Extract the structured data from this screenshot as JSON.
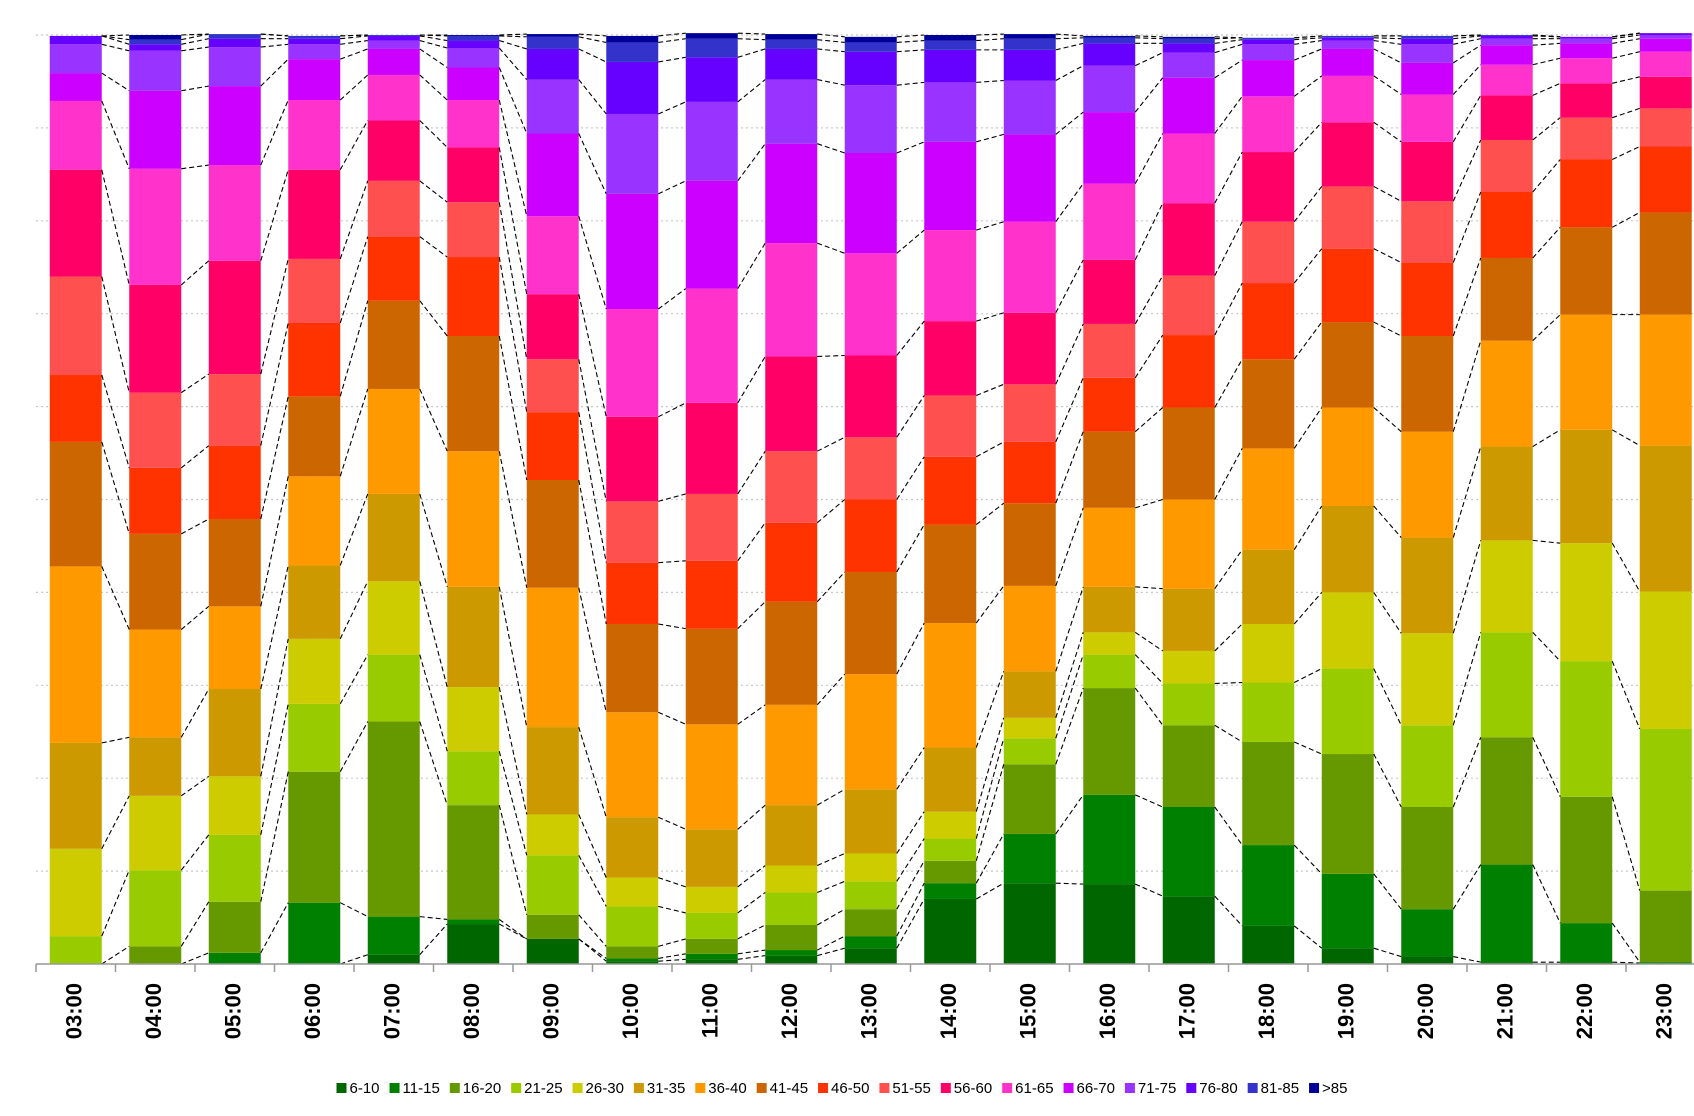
{
  "chart_data": {
    "type": "stacked_bar_100",
    "categories": [
      "03:00",
      "04:00",
      "05:00",
      "06:00",
      "07:00",
      "08:00",
      "09:00",
      "10:00",
      "11:00",
      "12:00",
      "13:00",
      "14:00",
      "15:00",
      "16:00",
      "17:00",
      "18:00",
      "19:00",
      "20:00",
      "21:00",
      "22:00",
      "23:00"
    ],
    "ylim": [
      0,
      100
    ],
    "yticks": [
      0,
      10,
      20,
      30,
      40,
      50,
      60,
      70,
      80,
      90,
      100
    ],
    "grid": true,
    "legend": "bottom",
    "series": [
      {
        "name": "6-10",
        "color": "#006600",
        "values": [
          0,
          0,
          0,
          0,
          1.0,
          4.3,
          2.7,
          0.3,
          0.5,
          0.9,
          1.7,
          7.0,
          8.7,
          8.6,
          7.3,
          4.1,
          1.7,
          0.8,
          0.2,
          0.2,
          0.1
        ]
      },
      {
        "name": "11-15",
        "color": "#008000",
        "values": [
          0,
          0,
          1.2,
          6.6,
          4.1,
          0.5,
          0,
          0.3,
          0.6,
          0.6,
          1.3,
          1.7,
          5.3,
          9.6,
          9.6,
          8.7,
          8.0,
          5.1,
          10.5,
          4.2,
          0.1
        ]
      },
      {
        "name": "16-20",
        "color": "#669900",
        "values": [
          0,
          1.9,
          5.5,
          14.1,
          21.0,
          12.3,
          2.6,
          1.3,
          1.6,
          2.7,
          2.9,
          2.4,
          7.5,
          11.5,
          8.8,
          11.1,
          12.9,
          11.0,
          13.7,
          13.6,
          7.7
        ]
      },
      {
        "name": "21-25",
        "color": "#99cc00",
        "values": [
          3.0,
          8.2,
          7.2,
          7.3,
          7.2,
          5.8,
          6.4,
          4.3,
          2.8,
          3.5,
          3.0,
          2.4,
          2.8,
          3.6,
          4.5,
          6.4,
          9.2,
          8.8,
          11.3,
          14.6,
          17.4
        ]
      },
      {
        "name": "26-30",
        "color": "#cccc00",
        "values": [
          9.4,
          8.0,
          6.3,
          7.0,
          7.9,
          6.9,
          4.4,
          3.1,
          2.8,
          2.9,
          3.0,
          2.9,
          2.2,
          2.4,
          3.5,
          6.3,
          8.2,
          9.9,
          9.9,
          12.7,
          14.8
        ]
      },
      {
        "name": "31-35",
        "color": "#cc9900",
        "values": [
          11.4,
          6.3,
          9.4,
          7.9,
          9.4,
          10.8,
          9.4,
          6.5,
          6.2,
          6.5,
          6.9,
          6.9,
          5.0,
          4.9,
          6.7,
          8.0,
          9.3,
          10.3,
          10.1,
          12.2,
          15.7
        ]
      },
      {
        "name": "36-40",
        "color": "#ff9900",
        "values": [
          19.0,
          11.6,
          8.9,
          9.6,
          11.3,
          14.6,
          15.0,
          11.3,
          11.3,
          10.8,
          12.4,
          13.4,
          9.2,
          8.5,
          9.6,
          10.9,
          10.6,
          11.4,
          11.4,
          12.4,
          14.1
        ]
      },
      {
        "name": "41-45",
        "color": "#cc6600",
        "values": [
          13.4,
          10.3,
          9.4,
          8.6,
          9.5,
          12.4,
          11.6,
          9.5,
          10.3,
          11.1,
          11.0,
          10.6,
          8.9,
          8.2,
          9.9,
          9.6,
          9.2,
          10.3,
          8.9,
          9.4,
          11.0
        ]
      },
      {
        "name": "46-50",
        "color": "#ff3300",
        "values": [
          7.2,
          7.1,
          7.9,
          7.9,
          6.9,
          8.5,
          7.3,
          6.6,
          7.3,
          8.5,
          7.8,
          7.3,
          6.6,
          5.8,
          7.8,
          8.2,
          7.9,
          7.9,
          7.1,
          7.3,
          7.1
        ]
      },
      {
        "name": "51-55",
        "color": "#ff5050",
        "values": [
          10.6,
          8.1,
          7.7,
          6.9,
          6.0,
          5.9,
          5.7,
          6.6,
          7.2,
          7.7,
          6.7,
          6.6,
          6.2,
          5.8,
          6.4,
          6.6,
          6.7,
          6.6,
          5.6,
          4.5,
          4.1
        ]
      },
      {
        "name": "56-60",
        "color": "#ff0066",
        "values": [
          11.5,
          11.6,
          12.2,
          9.6,
          6.5,
          5.9,
          7.0,
          9.1,
          9.8,
          10.2,
          8.8,
          8.0,
          7.7,
          6.9,
          7.8,
          7.5,
          6.9,
          6.4,
          4.8,
          3.7,
          3.4
        ]
      },
      {
        "name": "61-65",
        "color": "#ff33cc",
        "values": [
          7.4,
          12.5,
          10.3,
          7.5,
          4.9,
          5.1,
          8.4,
          11.6,
          12.3,
          12.2,
          11.0,
          9.8,
          9.8,
          8.2,
          7.5,
          6.0,
          5.0,
          5.1,
          3.3,
          2.7,
          2.7
        ]
      },
      {
        "name": "66-70",
        "color": "#cc00ff",
        "values": [
          3.0,
          8.4,
          8.5,
          4.4,
          2.8,
          3.5,
          8.9,
          12.4,
          11.6,
          10.7,
          10.8,
          9.5,
          9.4,
          7.7,
          6.0,
          3.9,
          2.9,
          3.4,
          2.1,
          1.6,
          1.4
        ]
      },
      {
        "name": "71-75",
        "color": "#9933ff",
        "values": [
          3.1,
          4.3,
          4.2,
          1.6,
          0.9,
          2.1,
          5.8,
          8.6,
          8.5,
          6.9,
          7.3,
          6.4,
          5.8,
          5.0,
          2.7,
          1.7,
          0.9,
          2.0,
          0.7,
          0.5,
          0.4
        ]
      },
      {
        "name": "76-80",
        "color": "#6600ff",
        "values": [
          0.9,
          0.7,
          0.9,
          0.6,
          0.5,
          0.8,
          3.3,
          5.6,
          4.8,
          3.3,
          3.6,
          3.5,
          3.3,
          2.4,
          1.0,
          0.5,
          0.3,
          0.6,
          0.3,
          0.2,
          0.2
        ]
      },
      {
        "name": "81-85",
        "color": "#3333cc",
        "values": [
          0,
          0.5,
          0.5,
          0.3,
          0.1,
          0.5,
          1.3,
          2.1,
          2.0,
          1.0,
          1.0,
          1.0,
          1.2,
          0.6,
          0.5,
          0.2,
          0.2,
          0.3,
          0.1,
          0,
          0
        ]
      },
      {
        "name": ">85",
        "color": "#000099",
        "values": [
          0,
          0.5,
          0,
          0,
          0,
          0.1,
          0.3,
          0.7,
          0.6,
          0.6,
          0.6,
          0.6,
          0.5,
          0.2,
          0.2,
          0,
          0,
          0,
          0,
          0,
          0
        ]
      }
    ]
  }
}
